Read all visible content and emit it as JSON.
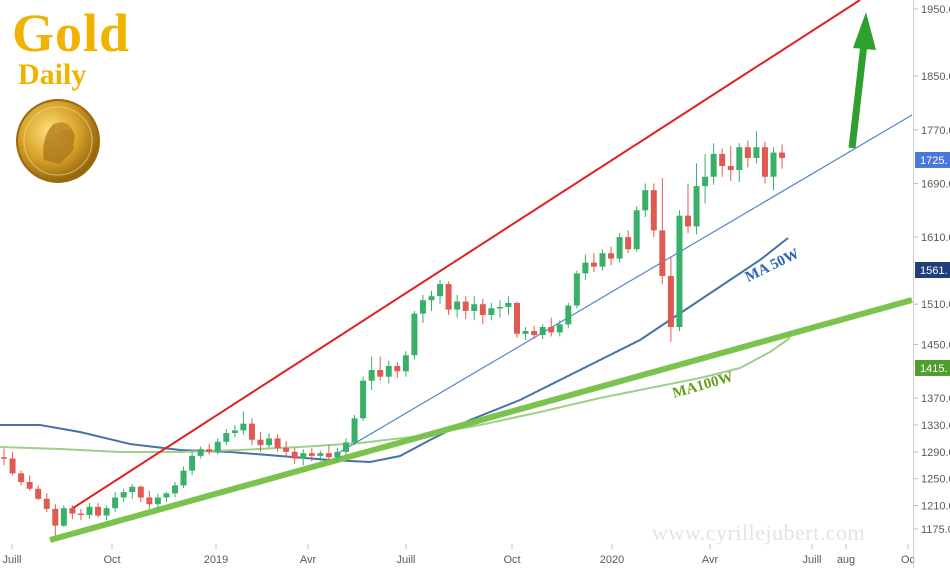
{
  "logo": {
    "title": "Gold",
    "subtitle": "Daily"
  },
  "watermark": "www.cyrillejubert.com",
  "chart_data": {
    "type": "candlestick",
    "y_axis_ticks": [
      "1950.0",
      "1850.0",
      "1770.0",
      "1690.0",
      "1610.0",
      "1510.0",
      "1450.0",
      "1370.0",
      "1330.0",
      "1290.0",
      "1250.0",
      "1210.0",
      "1175.0"
    ],
    "x_axis_ticks": [
      "Juill",
      "Oct",
      "2019",
      "Avr",
      "Juill",
      "Oct",
      "2020",
      "Avr",
      "Juill",
      "aug",
      "Oc"
    ],
    "price_tags": [
      {
        "label": "1725.",
        "value": 1725,
        "color": "#4a78d8"
      },
      {
        "label": "1561.",
        "value": 1561,
        "color": "#1f3f7a"
      },
      {
        "label": "1415.",
        "value": 1415,
        "color": "#4f9e2e"
      }
    ],
    "annotations": [
      {
        "text": "MA 50W",
        "color": "#2c64b4"
      },
      {
        "text": "MA100W",
        "color": "#6a9e1e"
      }
    ],
    "candles_weekly_approx": [
      [
        1282,
        1295,
        1270,
        1280
      ],
      [
        1280,
        1290,
        1255,
        1258
      ],
      [
        1258,
        1262,
        1240,
        1245
      ],
      [
        1245,
        1255,
        1232,
        1235
      ],
      [
        1235,
        1240,
        1218,
        1220
      ],
      [
        1220,
        1228,
        1200,
        1205
      ],
      [
        1205,
        1212,
        1165,
        1180
      ],
      [
        1180,
        1210,
        1178,
        1206
      ],
      [
        1206,
        1210,
        1190,
        1198
      ],
      [
        1198,
        1205,
        1188,
        1196
      ],
      [
        1196,
        1214,
        1190,
        1208
      ],
      [
        1208,
        1214,
        1192,
        1195
      ],
      [
        1195,
        1210,
        1188,
        1206
      ],
      [
        1206,
        1230,
        1200,
        1222
      ],
      [
        1222,
        1235,
        1215,
        1230
      ],
      [
        1230,
        1242,
        1220,
        1238
      ],
      [
        1238,
        1240,
        1215,
        1222
      ],
      [
        1222,
        1232,
        1205,
        1212
      ],
      [
        1212,
        1228,
        1205,
        1222
      ],
      [
        1222,
        1230,
        1215,
        1228
      ],
      [
        1228,
        1245,
        1222,
        1240
      ],
      [
        1240,
        1268,
        1236,
        1262
      ],
      [
        1262,
        1290,
        1255,
        1284
      ],
      [
        1284,
        1298,
        1280,
        1294
      ],
      [
        1294,
        1302,
        1286,
        1290
      ],
      [
        1290,
        1310,
        1286,
        1305
      ],
      [
        1305,
        1324,
        1300,
        1318
      ],
      [
        1318,
        1330,
        1312,
        1322
      ],
      [
        1322,
        1350,
        1316,
        1332
      ],
      [
        1332,
        1340,
        1300,
        1308
      ],
      [
        1308,
        1320,
        1290,
        1300
      ],
      [
        1300,
        1318,
        1296,
        1310
      ],
      [
        1310,
        1316,
        1290,
        1296
      ],
      [
        1296,
        1306,
        1282,
        1290
      ],
      [
        1290,
        1296,
        1272,
        1280
      ],
      [
        1280,
        1294,
        1270,
        1288
      ],
      [
        1288,
        1296,
        1276,
        1284
      ],
      [
        1284,
        1292,
        1276,
        1288
      ],
      [
        1288,
        1300,
        1278,
        1282
      ],
      [
        1282,
        1296,
        1274,
        1290
      ],
      [
        1290,
        1310,
        1285,
        1304
      ],
      [
        1304,
        1345,
        1300,
        1340
      ],
      [
        1340,
        1402,
        1336,
        1396
      ],
      [
        1396,
        1432,
        1382,
        1412
      ],
      [
        1412,
        1432,
        1396,
        1402
      ],
      [
        1402,
        1426,
        1392,
        1418
      ],
      [
        1418,
        1424,
        1400,
        1410
      ],
      [
        1410,
        1440,
        1402,
        1434
      ],
      [
        1434,
        1500,
        1428,
        1496
      ],
      [
        1496,
        1524,
        1482,
        1516
      ],
      [
        1516,
        1530,
        1500,
        1522
      ],
      [
        1522,
        1546,
        1510,
        1540
      ],
      [
        1540,
        1544,
        1494,
        1502
      ],
      [
        1502,
        1524,
        1490,
        1514
      ],
      [
        1514,
        1522,
        1488,
        1500
      ],
      [
        1500,
        1522,
        1486,
        1510
      ],
      [
        1510,
        1518,
        1480,
        1494
      ],
      [
        1494,
        1512,
        1486,
        1504
      ],
      [
        1504,
        1516,
        1490,
        1506
      ],
      [
        1506,
        1522,
        1494,
        1512
      ],
      [
        1512,
        1514,
        1460,
        1466
      ],
      [
        1466,
        1476,
        1456,
        1470
      ],
      [
        1470,
        1478,
        1458,
        1464
      ],
      [
        1464,
        1480,
        1458,
        1476
      ],
      [
        1476,
        1490,
        1462,
        1468
      ],
      [
        1468,
        1486,
        1462,
        1480
      ],
      [
        1480,
        1512,
        1474,
        1508
      ],
      [
        1508,
        1560,
        1504,
        1556
      ],
      [
        1556,
        1584,
        1546,
        1572
      ],
      [
        1572,
        1586,
        1558,
        1566
      ],
      [
        1566,
        1592,
        1560,
        1586
      ],
      [
        1586,
        1596,
        1568,
        1578
      ],
      [
        1578,
        1616,
        1572,
        1610
      ],
      [
        1610,
        1620,
        1586,
        1592
      ],
      [
        1592,
        1656,
        1588,
        1650
      ],
      [
        1650,
        1690,
        1640,
        1680
      ],
      [
        1680,
        1690,
        1610,
        1620
      ],
      [
        1620,
        1698,
        1540,
        1552
      ],
      [
        1552,
        1580,
        1454,
        1476
      ],
      [
        1476,
        1650,
        1470,
        1642
      ],
      [
        1642,
        1690,
        1616,
        1626
      ],
      [
        1626,
        1720,
        1614,
        1686
      ],
      [
        1686,
        1734,
        1660,
        1700
      ],
      [
        1700,
        1750,
        1688,
        1734
      ],
      [
        1734,
        1742,
        1700,
        1716
      ],
      [
        1716,
        1746,
        1694,
        1710
      ],
      [
        1710,
        1750,
        1692,
        1744
      ],
      [
        1744,
        1754,
        1714,
        1728
      ],
      [
        1728,
        1768,
        1720,
        1744
      ],
      [
        1744,
        1752,
        1690,
        1700
      ],
      [
        1700,
        1744,
        1680,
        1736
      ],
      [
        1736,
        1748,
        1712,
        1728
      ]
    ]
  }
}
